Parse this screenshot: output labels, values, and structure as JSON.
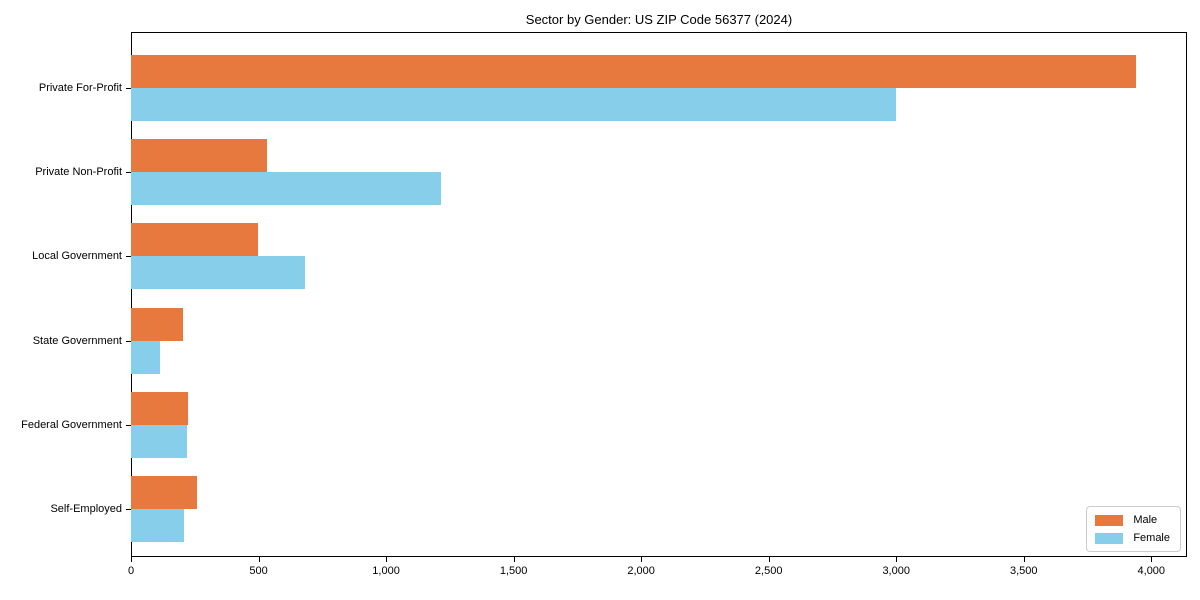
{
  "title": "Sector by Gender: US ZIP Code 56377 (2024)",
  "chart_data": {
    "type": "bar",
    "orientation": "horizontal",
    "title": "Sector by Gender: US ZIP Code 56377 (2024)",
    "xlabel": "",
    "ylabel": "",
    "categories": [
      "Private For-Profit",
      "Private Non-Profit",
      "Local Government",
      "State Government",
      "Federal Government",
      "Self-Employed"
    ],
    "series": [
      {
        "name": "Male",
        "color": "#e8793e",
        "values": [
          3940,
          533,
          498,
          202,
          225,
          259
        ]
      },
      {
        "name": "Female",
        "color": "#87ceeb",
        "values": [
          3000,
          1217,
          681,
          115,
          221,
          206
        ]
      }
    ],
    "xlim": [
      0,
      4140
    ],
    "xticks": [
      0,
      500,
      1000,
      1500,
      2000,
      2500,
      3000,
      3500,
      4000
    ],
    "xtick_labels": [
      "0",
      "500",
      "1,000",
      "1,500",
      "2,000",
      "2,500",
      "3,000",
      "3,500",
      "4,000"
    ],
    "grid": false,
    "legend_position": "lower right",
    "legend_labels": [
      "Male",
      "Female"
    ]
  }
}
